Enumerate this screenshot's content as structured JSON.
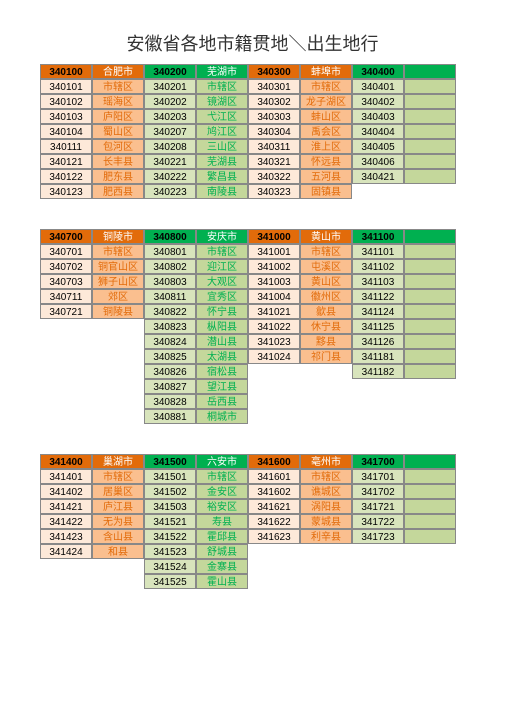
{
  "title": "安徽省各地市籍贯地＼出生地行",
  "sections": [
    [
      {
        "theme": "o",
        "hdr": [
          "340100",
          "合肥市"
        ],
        "rows": [
          [
            "340101",
            "市辖区"
          ],
          [
            "340102",
            "瑶海区"
          ],
          [
            "340103",
            "庐阳区"
          ],
          [
            "340104",
            "蜀山区"
          ],
          [
            "340111",
            "包河区"
          ],
          [
            "340121",
            "长丰县"
          ],
          [
            "340122",
            "肥东县"
          ],
          [
            "340123",
            "肥西县"
          ]
        ]
      },
      {
        "theme": "g",
        "hdr": [
          "340200",
          "芜湖市"
        ],
        "rows": [
          [
            "340201",
            "市辖区"
          ],
          [
            "340202",
            "镜湖区"
          ],
          [
            "340203",
            "弋江区"
          ],
          [
            "340207",
            "鸠江区"
          ],
          [
            "340208",
            "三山区"
          ],
          [
            "340221",
            "芜湖县"
          ],
          [
            "340222",
            "繁昌县"
          ],
          [
            "340223",
            "南陵县"
          ]
        ]
      },
      {
        "theme": "o",
        "hdr": [
          "340300",
          "蚌埠市"
        ],
        "rows": [
          [
            "340301",
            "市辖区"
          ],
          [
            "340302",
            "龙子湖区"
          ],
          [
            "340303",
            "蚌山区"
          ],
          [
            "340304",
            "禹会区"
          ],
          [
            "340311",
            "淮上区"
          ],
          [
            "340321",
            "怀远县"
          ],
          [
            "340322",
            "五河县"
          ],
          [
            "340323",
            "固镇县"
          ]
        ]
      },
      {
        "theme": "g",
        "hdr": [
          "340400",
          ""
        ],
        "rows": [
          [
            "340401",
            ""
          ],
          [
            "340402",
            ""
          ],
          [
            "340403",
            ""
          ],
          [
            "340404",
            ""
          ],
          [
            "340405",
            ""
          ],
          [
            "340406",
            ""
          ],
          [
            "340421",
            ""
          ]
        ]
      }
    ],
    [
      {
        "theme": "o",
        "hdr": [
          "340700",
          "铜陵市"
        ],
        "rows": [
          [
            "340701",
            "市辖区"
          ],
          [
            "340702",
            "铜官山区"
          ],
          [
            "340703",
            "狮子山区"
          ],
          [
            "340711",
            "郊区"
          ],
          [
            "340721",
            "铜陵县"
          ]
        ]
      },
      {
        "theme": "g",
        "hdr": [
          "340800",
          "安庆市"
        ],
        "rows": [
          [
            "340801",
            "市辖区"
          ],
          [
            "340802",
            "迎江区"
          ],
          [
            "340803",
            "大观区"
          ],
          [
            "340811",
            "宜秀区"
          ],
          [
            "340822",
            "怀宁县"
          ],
          [
            "340823",
            "枞阳县"
          ],
          [
            "340824",
            "潜山县"
          ],
          [
            "340825",
            "太湖县"
          ],
          [
            "340826",
            "宿松县"
          ],
          [
            "340827",
            "望江县"
          ],
          [
            "340828",
            "岳西县"
          ],
          [
            "340881",
            "桐城市"
          ]
        ]
      },
      {
        "theme": "o",
        "hdr": [
          "341000",
          "黄山市"
        ],
        "rows": [
          [
            "341001",
            "市辖区"
          ],
          [
            "341002",
            "屯溪区"
          ],
          [
            "341003",
            "黄山区"
          ],
          [
            "341004",
            "徽州区"
          ],
          [
            "341021",
            "歙县"
          ],
          [
            "341022",
            "休宁县"
          ],
          [
            "341023",
            "黟县"
          ],
          [
            "341024",
            "祁门县"
          ]
        ]
      },
      {
        "theme": "g",
        "hdr": [
          "341100",
          ""
        ],
        "rows": [
          [
            "341101",
            ""
          ],
          [
            "341102",
            ""
          ],
          [
            "341103",
            ""
          ],
          [
            "341122",
            ""
          ],
          [
            "341124",
            ""
          ],
          [
            "341125",
            ""
          ],
          [
            "341126",
            ""
          ],
          [
            "341181",
            ""
          ],
          [
            "341182",
            ""
          ]
        ]
      }
    ],
    [
      {
        "theme": "o",
        "hdr": [
          "341400",
          "巢湖市"
        ],
        "rows": [
          [
            "341401",
            "市辖区"
          ],
          [
            "341402",
            "居巢区"
          ],
          [
            "341421",
            "庐江县"
          ],
          [
            "341422",
            "无为县"
          ],
          [
            "341423",
            "含山县"
          ],
          [
            "341424",
            "和县"
          ]
        ]
      },
      {
        "theme": "g",
        "hdr": [
          "341500",
          "六安市"
        ],
        "rows": [
          [
            "341501",
            "市辖区"
          ],
          [
            "341502",
            "金安区"
          ],
          [
            "341503",
            "裕安区"
          ],
          [
            "341521",
            "寿县"
          ],
          [
            "341522",
            "霍邱县"
          ],
          [
            "341523",
            "舒城县"
          ],
          [
            "341524",
            "金寨县"
          ],
          [
            "341525",
            "霍山县"
          ]
        ]
      },
      {
        "theme": "o",
        "hdr": [
          "341600",
          "亳州市"
        ],
        "rows": [
          [
            "341601",
            "市辖区"
          ],
          [
            "341602",
            "谯城区"
          ],
          [
            "341621",
            "涡阳县"
          ],
          [
            "341622",
            "蒙城县"
          ],
          [
            "341623",
            "利辛县"
          ]
        ]
      },
      {
        "theme": "g",
        "hdr": [
          "341700",
          ""
        ],
        "rows": [
          [
            "341701",
            ""
          ],
          [
            "341702",
            ""
          ],
          [
            "341721",
            ""
          ],
          [
            "341722",
            ""
          ],
          [
            "341723",
            ""
          ]
        ]
      }
    ]
  ]
}
